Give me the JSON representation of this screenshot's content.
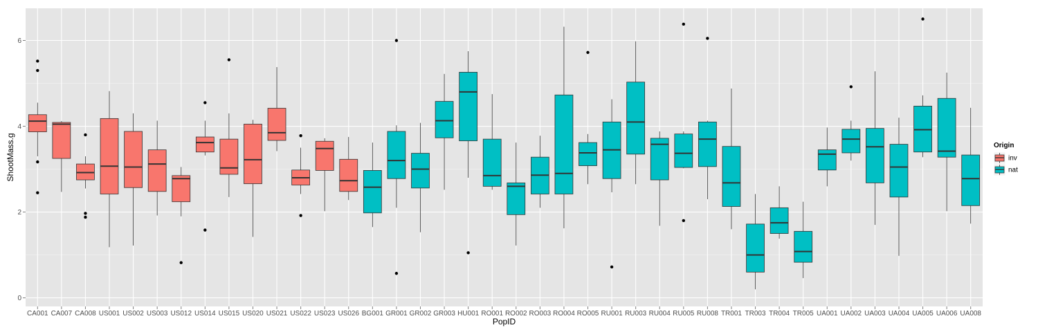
{
  "chart_data": {
    "type": "boxplot",
    "title": "",
    "xlabel": "PopID",
    "ylabel": "ShootMass.g",
    "ylim": [
      -0.2,
      6.75
    ],
    "yticks": [
      0,
      2,
      4,
      6
    ],
    "grid": true,
    "legend": {
      "title": "Origin",
      "position": "right",
      "entries": [
        {
          "name": "inv",
          "color": "#F8766D"
        },
        {
          "name": "nat",
          "color": "#00BFC4"
        }
      ]
    },
    "colors": {
      "inv": "#F8766D",
      "nat": "#00BFC4",
      "panel": "#E5E5E5",
      "grid": "#FFFFFF"
    },
    "categories": [
      "CA001",
      "CA007",
      "CA008",
      "US001",
      "US002",
      "US003",
      "US012",
      "US014",
      "US015",
      "US020",
      "US021",
      "US022",
      "US023",
      "US026",
      "BG001",
      "GR001",
      "GR002",
      "GR003",
      "HU001",
      "RO001",
      "RO002",
      "RO003",
      "RO004",
      "RO005",
      "RU001",
      "RU003",
      "RU004",
      "RU005",
      "RU008",
      "TR001",
      "TR003",
      "TR004",
      "TR005",
      "UA001",
      "UA002",
      "UA003",
      "UA004",
      "UA005",
      "UA006",
      "UA008"
    ],
    "boxes": [
      {
        "group": "inv",
        "wlo": 3.3,
        "q1": 3.87,
        "med": 4.12,
        "q3": 4.27,
        "whi": 4.55,
        "out": [
          5.52,
          5.3,
          3.17,
          2.45
        ]
      },
      {
        "group": "inv",
        "wlo": 2.47,
        "q1": 3.25,
        "med": 4.05,
        "q3": 4.09,
        "whi": 4.12,
        "out": []
      },
      {
        "group": "inv",
        "wlo": 2.55,
        "q1": 2.75,
        "med": 2.92,
        "q3": 3.12,
        "whi": 3.3,
        "out": [
          3.8,
          1.97,
          1.88
        ]
      },
      {
        "group": "inv",
        "wlo": 1.18,
        "q1": 2.42,
        "med": 3.07,
        "q3": 4.18,
        "whi": 4.82,
        "out": []
      },
      {
        "group": "inv",
        "wlo": 1.22,
        "q1": 2.57,
        "med": 3.05,
        "q3": 3.88,
        "whi": 4.3,
        "out": []
      },
      {
        "group": "inv",
        "wlo": 1.92,
        "q1": 2.48,
        "med": 3.12,
        "q3": 3.45,
        "whi": 4.13,
        "out": []
      },
      {
        "group": "inv",
        "wlo": 1.9,
        "q1": 2.24,
        "med": 2.78,
        "q3": 2.85,
        "whi": 3.05,
        "out": [
          0.82
        ]
      },
      {
        "group": "inv",
        "wlo": 3.32,
        "q1": 3.4,
        "med": 3.62,
        "q3": 3.75,
        "whi": 4.13,
        "out": [
          4.55,
          1.58
        ]
      },
      {
        "group": "inv",
        "wlo": 2.35,
        "q1": 2.88,
        "med": 3.03,
        "q3": 3.7,
        "whi": 4.3,
        "out": [
          5.55
        ]
      },
      {
        "group": "inv",
        "wlo": 1.42,
        "q1": 2.66,
        "med": 3.22,
        "q3": 4.05,
        "whi": 4.15,
        "out": []
      },
      {
        "group": "inv",
        "wlo": 3.42,
        "q1": 3.67,
        "med": 3.85,
        "q3": 4.42,
        "whi": 5.38,
        "out": []
      },
      {
        "group": "inv",
        "wlo": 2.42,
        "q1": 2.63,
        "med": 2.8,
        "q3": 2.98,
        "whi": 3.5,
        "out": [
          3.78,
          1.92
        ]
      },
      {
        "group": "inv",
        "wlo": 2.02,
        "q1": 2.97,
        "med": 3.48,
        "q3": 3.65,
        "whi": 3.72,
        "out": []
      },
      {
        "group": "inv",
        "wlo": 2.28,
        "q1": 2.48,
        "med": 2.73,
        "q3": 3.23,
        "whi": 3.75,
        "out": []
      },
      {
        "group": "nat",
        "wlo": 1.65,
        "q1": 1.98,
        "med": 2.58,
        "q3": 2.97,
        "whi": 3.62,
        "out": []
      },
      {
        "group": "nat",
        "wlo": 2.1,
        "q1": 2.78,
        "med": 3.2,
        "q3": 3.88,
        "whi": 4.02,
        "out": [
          6.0,
          0.57
        ]
      },
      {
        "group": "nat",
        "wlo": 1.53,
        "q1": 2.56,
        "med": 3.0,
        "q3": 3.37,
        "whi": 4.08,
        "out": []
      },
      {
        "group": "nat",
        "wlo": 2.52,
        "q1": 3.73,
        "med": 4.13,
        "q3": 4.58,
        "whi": 5.22,
        "out": []
      },
      {
        "group": "nat",
        "wlo": 2.8,
        "q1": 3.66,
        "med": 4.8,
        "q3": 5.26,
        "whi": 5.75,
        "out": [
          1.05
        ]
      },
      {
        "group": "nat",
        "wlo": 2.52,
        "q1": 2.6,
        "med": 2.85,
        "q3": 3.7,
        "whi": 4.75,
        "out": []
      },
      {
        "group": "nat",
        "wlo": 1.22,
        "q1": 1.94,
        "med": 2.6,
        "q3": 2.68,
        "whi": 3.62,
        "out": []
      },
      {
        "group": "nat",
        "wlo": 2.1,
        "q1": 2.42,
        "med": 2.86,
        "q3": 3.28,
        "whi": 3.78,
        "out": []
      },
      {
        "group": "nat",
        "wlo": 1.62,
        "q1": 2.42,
        "med": 2.9,
        "q3": 4.73,
        "whi": 6.32,
        "out": []
      },
      {
        "group": "nat",
        "wlo": 2.65,
        "q1": 3.08,
        "med": 3.38,
        "q3": 3.62,
        "whi": 3.82,
        "out": [
          5.72
        ]
      },
      {
        "group": "nat",
        "wlo": 2.46,
        "q1": 2.78,
        "med": 3.45,
        "q3": 4.1,
        "whi": 4.63,
        "out": [
          0.72
        ]
      },
      {
        "group": "nat",
        "wlo": 2.65,
        "q1": 3.35,
        "med": 4.1,
        "q3": 5.03,
        "whi": 5.98,
        "out": []
      },
      {
        "group": "nat",
        "wlo": 1.68,
        "q1": 2.75,
        "med": 3.58,
        "q3": 3.72,
        "whi": 3.88,
        "out": []
      },
      {
        "group": "nat",
        "wlo": 3.02,
        "q1": 3.04,
        "med": 3.37,
        "q3": 3.82,
        "whi": 3.88,
        "out": [
          6.38,
          1.8
        ]
      },
      {
        "group": "nat",
        "wlo": 2.3,
        "q1": 3.06,
        "med": 3.7,
        "q3": 4.1,
        "whi": 4.13,
        "out": [
          6.05
        ]
      },
      {
        "group": "nat",
        "wlo": 1.6,
        "q1": 2.13,
        "med": 2.68,
        "q3": 3.53,
        "whi": 4.88,
        "out": []
      },
      {
        "group": "nat",
        "wlo": 0.2,
        "q1": 0.6,
        "med": 1.0,
        "q3": 1.72,
        "whi": 2.42,
        "out": []
      },
      {
        "group": "nat",
        "wlo": 1.38,
        "q1": 1.5,
        "med": 1.75,
        "q3": 2.1,
        "whi": 2.6,
        "out": []
      },
      {
        "group": "nat",
        "wlo": 0.46,
        "q1": 0.83,
        "med": 1.08,
        "q3": 1.55,
        "whi": 2.24,
        "out": []
      },
      {
        "group": "nat",
        "wlo": 2.6,
        "q1": 2.98,
        "med": 3.35,
        "q3": 3.45,
        "whi": 3.97,
        "out": []
      },
      {
        "group": "nat",
        "wlo": 3.2,
        "q1": 3.38,
        "med": 3.7,
        "q3": 3.93,
        "whi": 4.13,
        "out": [
          4.92
        ]
      },
      {
        "group": "nat",
        "wlo": 1.7,
        "q1": 2.68,
        "med": 3.52,
        "q3": 3.95,
        "whi": 5.28,
        "out": []
      },
      {
        "group": "nat",
        "wlo": 0.98,
        "q1": 2.35,
        "med": 3.05,
        "q3": 3.58,
        "whi": 4.2,
        "out": []
      },
      {
        "group": "nat",
        "wlo": 3.28,
        "q1": 3.4,
        "med": 3.92,
        "q3": 4.47,
        "whi": 4.72,
        "out": [
          6.5
        ]
      },
      {
        "group": "nat",
        "wlo": 2.02,
        "q1": 3.28,
        "med": 3.42,
        "q3": 4.65,
        "whi": 5.25,
        "out": []
      },
      {
        "group": "nat",
        "wlo": 1.73,
        "q1": 2.15,
        "med": 2.78,
        "q3": 3.33,
        "whi": 4.43,
        "out": []
      }
    ]
  }
}
